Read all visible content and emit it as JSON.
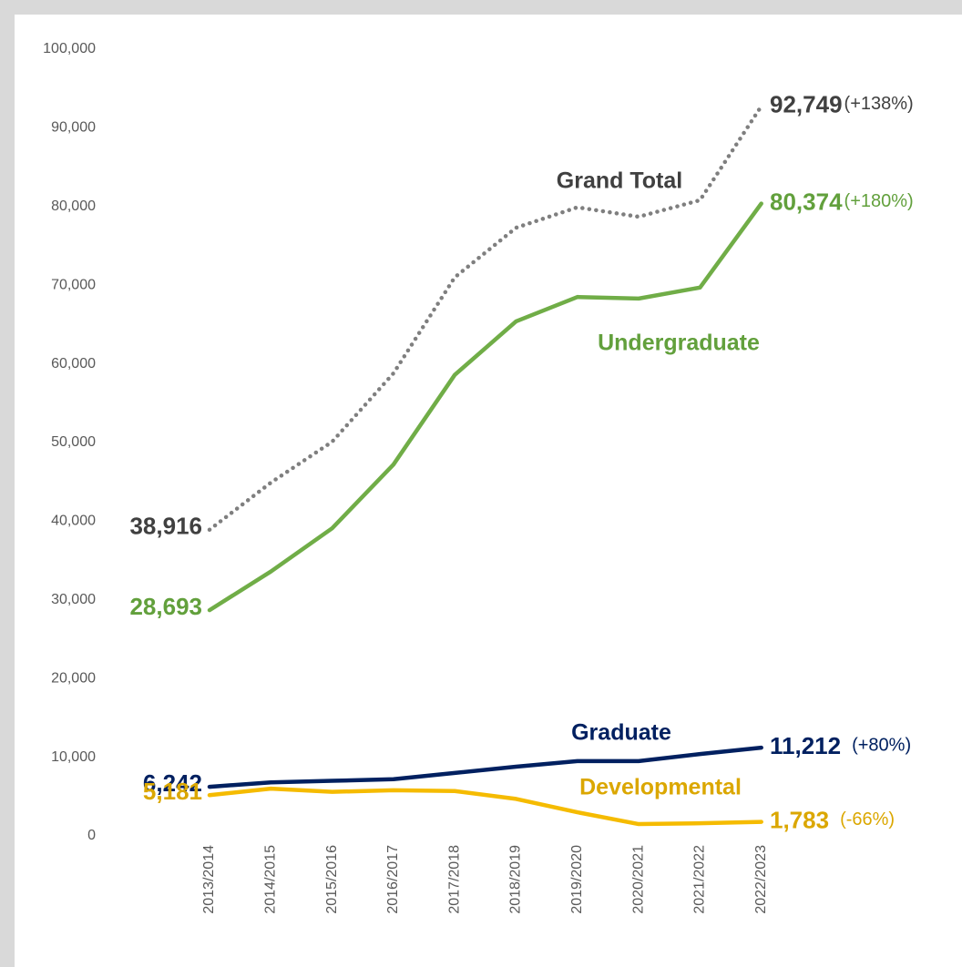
{
  "chart_data": {
    "type": "line",
    "categories": [
      "2013/2014",
      "2014/2015",
      "2015/2016",
      "2016/2017",
      "2017/2018",
      "2018/2019",
      "2019/2020",
      "2020/2021",
      "2021/2022",
      "2022/2023"
    ],
    "ylim": [
      0,
      100000
    ],
    "yticks": [
      0,
      {
        "value": 10000,
        "label": "10,000"
      },
      {
        "value": 20000,
        "label": "20,000"
      },
      {
        "value": 30000,
        "label": "30,000"
      },
      {
        "value": 40000,
        "label": "40,000"
      },
      {
        "value": 50000,
        "label": "50,000"
      },
      {
        "value": 60000,
        "label": "60,000"
      },
      {
        "value": 70000,
        "label": "70,000"
      },
      {
        "value": 80000,
        "label": "80,000"
      },
      {
        "value": 90000,
        "label": "90,000"
      },
      {
        "value": 100000,
        "label": "100,000"
      }
    ],
    "grid": false,
    "series": [
      {
        "name": "Grand Total",
        "color": "#7f7f7f",
        "label_color": "#404040",
        "dash": "dotted",
        "change": "(+138%)",
        "values": [
          38916,
          44900,
          50100,
          58800,
          71000,
          77300,
          79900,
          78700,
          80800,
          92749
        ],
        "value_labels": [
          "38,916",
          null,
          null,
          null,
          null,
          null,
          null,
          null,
          null,
          "92,749"
        ]
      },
      {
        "name": "Undergraduate",
        "color": "#70ad47",
        "label_color": "#62a03c",
        "change": "(+180%)",
        "values": [
          28693,
          33600,
          39100,
          47200,
          58600,
          65400,
          68500,
          68300,
          69700,
          80374
        ],
        "value_labels": [
          "28,693",
          null,
          null,
          null,
          null,
          null,
          null,
          null,
          null,
          "80,374"
        ]
      },
      {
        "name": "Graduate",
        "color": "#002060",
        "label_color": "#002060",
        "change": "(+80%)",
        "values": [
          6242,
          6800,
          7000,
          7200,
          8000,
          8800,
          9500,
          9500,
          10400,
          11212
        ],
        "value_labels": [
          "6,242",
          null,
          null,
          null,
          null,
          null,
          null,
          null,
          null,
          "11,212"
        ]
      },
      {
        "name": "Developmental",
        "color": "#f5bb00",
        "label_color": "#dba700",
        "change": "(-66%)",
        "values": [
          5181,
          6000,
          5600,
          5800,
          5700,
          4700,
          3000,
          1500,
          1600,
          1783
        ],
        "value_labels": [
          "5,181",
          null,
          null,
          null,
          null,
          null,
          null,
          null,
          null,
          "1,783"
        ]
      }
    ]
  }
}
